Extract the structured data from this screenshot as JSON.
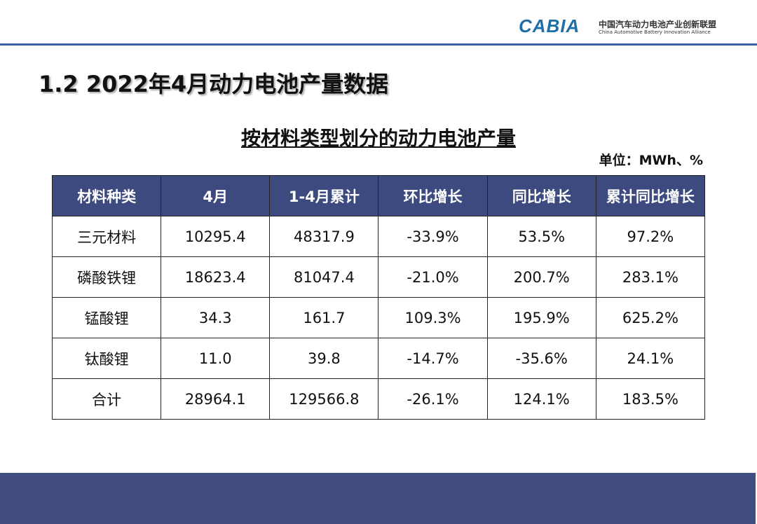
{
  "header": {
    "logo": "CABIA",
    "org_name": "中国汽车动力电池产业创新联盟",
    "org_name_en": "China Automotive Battery Innovation Alliance"
  },
  "title": "1.2 2022年4月动力电池产量数据",
  "table": {
    "title": "按材料类型划分的动力电池产量",
    "unit": "单位：MWh、%",
    "columns": [
      "材料种类",
      "4月",
      "1-4月累计",
      "环比增长",
      "同比增长",
      "累计同比增长"
    ],
    "rows": [
      [
        "三元材料",
        "10295.4",
        "48317.9",
        "-33.9%",
        "53.5%",
        "97.2%"
      ],
      [
        "磷酸铁锂",
        "18623.4",
        "81047.4",
        "-21.0%",
        "200.7%",
        "283.1%"
      ],
      [
        "锰酸锂",
        "34.3",
        "161.7",
        "109.3%",
        "195.9%",
        "625.2%"
      ],
      [
        "钛酸锂",
        "11.0",
        "39.8",
        "-14.7%",
        "-35.6%",
        "24.1%"
      ],
      [
        "合计",
        "28964.1",
        "129566.8",
        "-26.1%",
        "124.1%",
        "183.5%"
      ]
    ]
  }
}
